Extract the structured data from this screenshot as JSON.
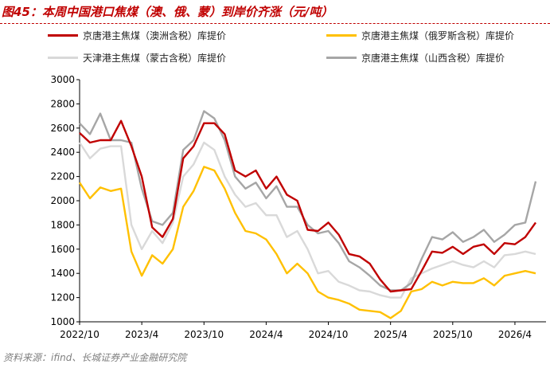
{
  "header": {
    "title": "图45：本周中国港口焦煤（澳、俄、蒙）到岸价齐涨（元/吨）"
  },
  "footer": {
    "source": "资料来源：ifind、长城证券产业金融研究院"
  },
  "chart_data": {
    "type": "line",
    "title": "图45：本周中国港口焦煤（澳、俄、蒙）到岸价齐涨（元/吨）",
    "xlabel": "",
    "ylabel": "",
    "ylim": [
      1000,
      3000
    ],
    "yticks": [
      1000,
      1200,
      1400,
      1600,
      1800,
      2000,
      2200,
      2400,
      2600,
      2800,
      3000
    ],
    "xlim": [
      "2022-10",
      "2026-07"
    ],
    "xticks": [
      "2022/10",
      "2023/4",
      "2023/10",
      "2024/4",
      "2024/10",
      "2025/4",
      "2025/10",
      "2026/4"
    ],
    "grid": false,
    "legend_position": "top",
    "series": [
      {
        "name": "京唐港主焦煤（澳洲含税）库提价",
        "color": "#c00000",
        "x": [
          "2022-10",
          "2022-11",
          "2022-12",
          "2023-01",
          "2023-02",
          "2023-03",
          "2023-04",
          "2023-05",
          "2023-06",
          "2023-07",
          "2023-08",
          "2023-09",
          "2023-10",
          "2023-11",
          "2023-12",
          "2024-01",
          "2024-02",
          "2024-03",
          "2024-04",
          "2024-05",
          "2024-06",
          "2024-07",
          "2024-08",
          "2024-09",
          "2024-10",
          "2024-11",
          "2024-12",
          "2025-01",
          "2025-02",
          "2025-03",
          "2025-04",
          "2025-05",
          "2025-06",
          "2025-07",
          "2025-08",
          "2025-09",
          "2025-10",
          "2025-11",
          "2025-12",
          "2026-01",
          "2026-02",
          "2026-03",
          "2026-04",
          "2026-05",
          "2026-06"
        ],
        "y": [
          2560,
          2480,
          2500,
          2500,
          2660,
          2450,
          2200,
          1780,
          1700,
          1850,
          2350,
          2450,
          2640,
          2640,
          2550,
          2250,
          2200,
          2250,
          2100,
          2200,
          2050,
          2000,
          1760,
          1750,
          1820,
          1720,
          1560,
          1540,
          1480,
          1350,
          1250,
          1260,
          1270,
          1420,
          1580,
          1570,
          1620,
          1560,
          1620,
          1640,
          1560,
          1650,
          1640,
          1700,
          1820
        ]
      },
      {
        "name": "京唐港主焦煤（俄罗斯含税）库提价",
        "color": "#ffc000",
        "x": [
          "2022-10",
          "2022-11",
          "2022-12",
          "2023-01",
          "2023-02",
          "2023-03",
          "2023-04",
          "2023-05",
          "2023-06",
          "2023-07",
          "2023-08",
          "2023-09",
          "2023-10",
          "2023-11",
          "2023-12",
          "2024-01",
          "2024-02",
          "2024-03",
          "2024-04",
          "2024-05",
          "2024-06",
          "2024-07",
          "2024-08",
          "2024-09",
          "2024-10",
          "2024-11",
          "2024-12",
          "2025-01",
          "2025-02",
          "2025-03",
          "2025-04",
          "2025-05",
          "2025-06",
          "2025-07",
          "2025-08",
          "2025-09",
          "2025-10",
          "2025-11",
          "2025-12",
          "2026-01",
          "2026-02",
          "2026-03",
          "2026-04",
          "2026-05",
          "2026-06"
        ],
        "y": [
          2150,
          2020,
          2110,
          2080,
          2100,
          1580,
          1380,
          1550,
          1480,
          1600,
          1950,
          2080,
          2280,
          2250,
          2100,
          1900,
          1750,
          1730,
          1680,
          1560,
          1400,
          1480,
          1400,
          1250,
          1200,
          1180,
          1150,
          1100,
          1090,
          1080,
          1030,
          1090,
          1250,
          1270,
          1330,
          1300,
          1330,
          1320,
          1320,
          1360,
          1300,
          1380,
          1400,
          1420,
          1400
        ]
      },
      {
        "name": "天津港主焦煤（蒙古含税）库提价",
        "color": "#d9d9d9",
        "x": [
          "2022-10",
          "2022-11",
          "2022-12",
          "2023-01",
          "2023-02",
          "2023-03",
          "2023-04",
          "2023-05",
          "2023-06",
          "2023-07",
          "2023-08",
          "2023-09",
          "2023-10",
          "2023-11",
          "2023-12",
          "2024-01",
          "2024-02",
          "2024-03",
          "2024-04",
          "2024-05",
          "2024-06",
          "2024-07",
          "2024-08",
          "2024-09",
          "2024-10",
          "2024-11",
          "2024-12",
          "2025-01",
          "2025-02",
          "2025-03",
          "2025-04",
          "2025-05",
          "2025-06",
          "2025-07",
          "2025-08",
          "2025-09",
          "2025-10",
          "2025-11",
          "2025-12",
          "2026-01",
          "2026-02",
          "2026-03",
          "2026-04",
          "2026-05",
          "2026-06"
        ],
        "y": [
          2480,
          2350,
          2430,
          2450,
          2450,
          1800,
          1600,
          1750,
          1650,
          1820,
          2200,
          2300,
          2480,
          2420,
          2200,
          2050,
          1950,
          1980,
          1880,
          1880,
          1700,
          1750,
          1600,
          1400,
          1420,
          1330,
          1300,
          1260,
          1250,
          1220,
          1200,
          1200,
          1360,
          1400,
          1440,
          1470,
          1500,
          1470,
          1450,
          1500,
          1450,
          1550,
          1560,
          1580,
          1560
        ]
      },
      {
        "name": "京唐港主焦煤（山西含税）库提价",
        "color": "#a6a6a6",
        "x": [
          "2022-10",
          "2022-11",
          "2022-12",
          "2023-01",
          "2023-02",
          "2023-03",
          "2023-04",
          "2023-05",
          "2023-06",
          "2023-07",
          "2023-08",
          "2023-09",
          "2023-10",
          "2023-11",
          "2023-12",
          "2024-01",
          "2024-02",
          "2024-03",
          "2024-04",
          "2024-05",
          "2024-06",
          "2024-07",
          "2024-08",
          "2024-09",
          "2024-10",
          "2024-11",
          "2024-12",
          "2025-01",
          "2025-02",
          "2025-03",
          "2025-04",
          "2025-05",
          "2025-06",
          "2025-07",
          "2025-08",
          "2025-09",
          "2025-10",
          "2025-11",
          "2025-12",
          "2026-01",
          "2026-02",
          "2026-03",
          "2026-04",
          "2026-05",
          "2026-06"
        ],
        "y": [
          2640,
          2550,
          2720,
          2500,
          2500,
          2480,
          2100,
          1830,
          1800,
          1900,
          2420,
          2500,
          2740,
          2680,
          2500,
          2200,
          2100,
          2150,
          2020,
          2120,
          1950,
          1950,
          1800,
          1730,
          1750,
          1650,
          1500,
          1450,
          1380,
          1300,
          1260,
          1260,
          1320,
          1520,
          1700,
          1680,
          1740,
          1660,
          1700,
          1760,
          1660,
          1720,
          1800,
          1820,
          2160
        ]
      }
    ]
  }
}
